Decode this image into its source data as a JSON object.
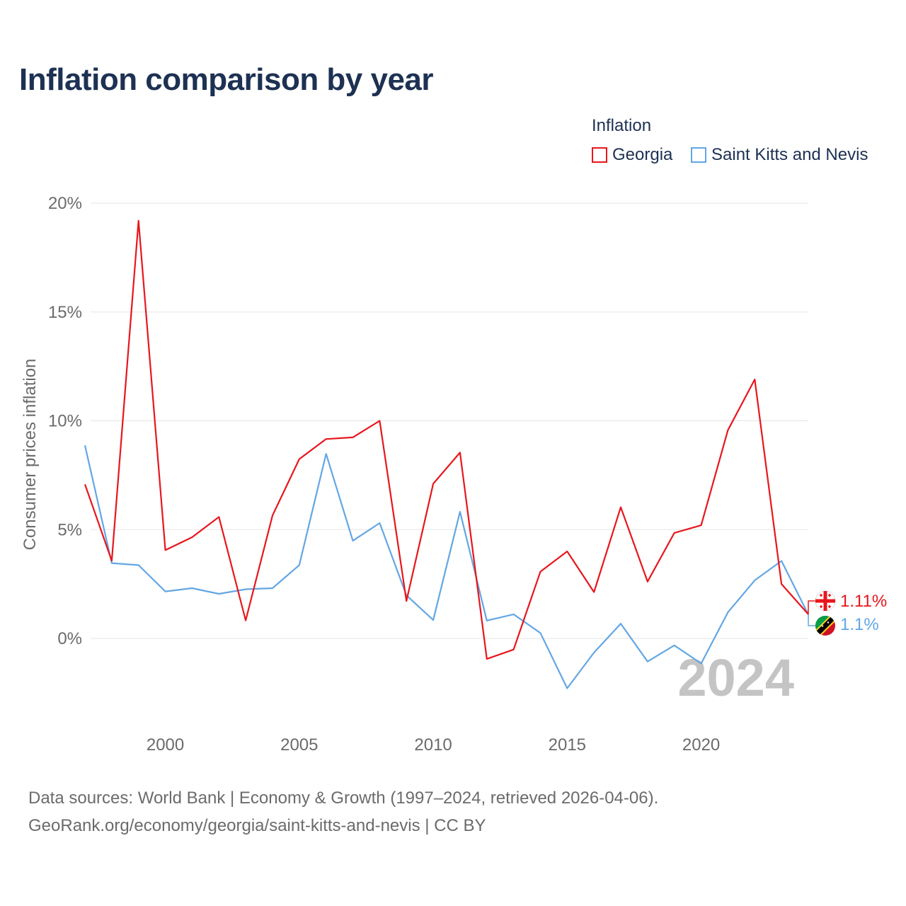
{
  "title": "Inflation comparison by year",
  "legend": {
    "title": "Inflation",
    "items": [
      {
        "label": "Georgia",
        "color": "#e8161c"
      },
      {
        "label": "Saint Kitts and Nevis",
        "color": "#63a6e4"
      }
    ]
  },
  "chart_data": {
    "type": "line",
    "ylabel": "Consumer prices inflation",
    "xlabel": "",
    "x": [
      1997,
      1998,
      1999,
      2000,
      2001,
      2002,
      2003,
      2004,
      2005,
      2006,
      2007,
      2008,
      2009,
      2010,
      2011,
      2012,
      2013,
      2014,
      2015,
      2016,
      2017,
      2018,
      2019,
      2020,
      2021,
      2022,
      2023,
      2024
    ],
    "xlim": [
      1997,
      2024
    ],
    "ylim": [
      -3.6,
      20
    ],
    "x_ticks": [
      2000,
      2005,
      2010,
      2015,
      2020
    ],
    "x_tick_labels": [
      "2000",
      "2005",
      "2010",
      "2015",
      "2020"
    ],
    "y_ticks": [
      0,
      5,
      10,
      15,
      20
    ],
    "y_tick_labels": [
      "0%",
      "5%",
      "10%",
      "15%",
      "20%"
    ],
    "grid": true,
    "current_year_label": "2024",
    "series": [
      {
        "name": "Georgia",
        "color": "#e8161c",
        "end_label": "1.11%",
        "values": [
          7.08,
          3.57,
          19.19,
          4.06,
          4.65,
          5.58,
          0.83,
          5.65,
          8.24,
          9.16,
          9.24,
          10.0,
          1.72,
          7.11,
          8.54,
          -0.94,
          -0.51,
          3.07,
          4.0,
          2.13,
          6.03,
          2.61,
          4.85,
          5.2,
          9.57,
          11.9,
          2.5,
          1.11
        ]
      },
      {
        "name": "Saint Kitts and Nevis",
        "color": "#63a6e4",
        "end_label": "1.1%",
        "values": [
          8.87,
          3.46,
          3.37,
          2.16,
          2.31,
          2.05,
          2.26,
          2.31,
          3.37,
          8.48,
          4.49,
          5.3,
          1.98,
          0.85,
          5.82,
          0.82,
          1.11,
          0.25,
          -2.29,
          -0.65,
          0.68,
          -1.06,
          -0.32,
          -1.15,
          1.2,
          2.67,
          3.56,
          1.1
        ]
      }
    ]
  },
  "source": {
    "line1": "Data sources: World Bank | Economy & Growth (1997–2024, retrieved 2026-04-06).",
    "line2": "GeoRank.org/economy/georgia/saint-kitts-and-nevis | CC BY"
  }
}
